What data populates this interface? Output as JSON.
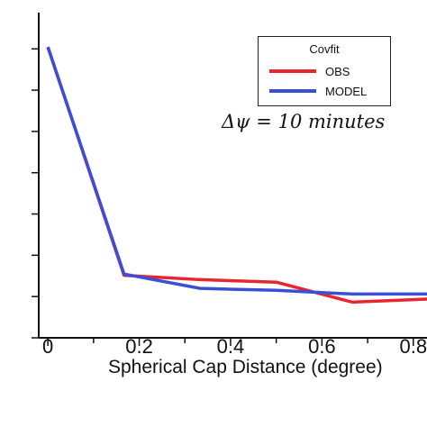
{
  "chart_data": {
    "type": "line",
    "xlabel": "Spherical Cap Distance (degree)",
    "ylabel": "",
    "xlim": [
      -0.02,
      0.83
    ],
    "ylim": [
      0,
      0.26
    ],
    "x_ticks": [
      "0",
      "0.2",
      "0.4",
      "0.6",
      "0.8"
    ],
    "x_tick_values": [
      0,
      0.2,
      0.4,
      0.6,
      0.8
    ],
    "y_tick_values": [
      0,
      0.033,
      0.066,
      0.099,
      0.132,
      0.165,
      0.198,
      0.231
    ],
    "legend": {
      "title": "Covfit",
      "position": "top-right"
    },
    "annotation": "Δψ = 10 minutes",
    "series": [
      {
        "name": "OBS",
        "color": "#e8262d",
        "x": [
          0,
          0.1667,
          0.3333,
          0.5,
          0.6667,
          0.8333
        ],
        "y": [
          0.2325,
          0.05,
          0.0465,
          0.0445,
          0.0285,
          0.031
        ]
      },
      {
        "name": "MODEL",
        "color": "#3a4fd6",
        "x": [
          0,
          0.1667,
          0.3333,
          0.5,
          0.6667,
          0.8333
        ],
        "y": [
          0.2325,
          0.051,
          0.0395,
          0.038,
          0.035,
          0.035
        ]
      }
    ]
  }
}
